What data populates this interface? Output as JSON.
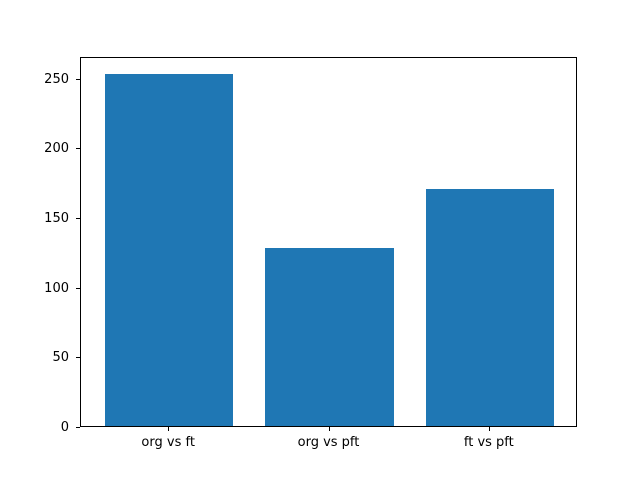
{
  "chart_data": {
    "type": "bar",
    "title": "",
    "xlabel": "",
    "ylabel": "",
    "categories": [
      "org vs ft",
      "org vs pft",
      "ft vs pft"
    ],
    "values": [
      253,
      128,
      170
    ],
    "yticks": [
      0,
      50,
      100,
      150,
      200,
      250
    ],
    "ylim": [
      0,
      265.6
    ],
    "bar_color": "#1f77b4",
    "spine_color": "#000000",
    "background_color": "#ffffff",
    "bar_width_fraction": 0.8,
    "grid": false,
    "legend": null
  }
}
